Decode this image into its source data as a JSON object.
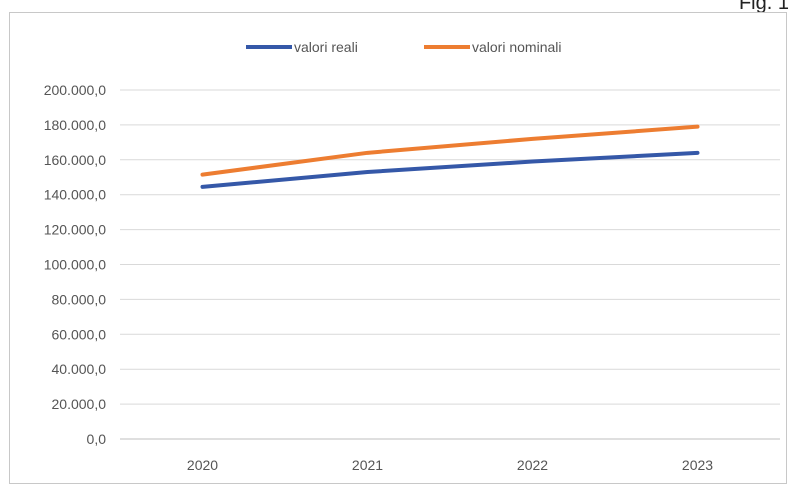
{
  "figure_label": "Fig. 1",
  "colors": {
    "valori_reali": "#3558a8",
    "valori_nominali": "#ed7d31",
    "grid": "#d9d9d9"
  },
  "chart_data": {
    "type": "line",
    "title": "",
    "xlabel": "",
    "ylabel": "",
    "categories": [
      "2020",
      "2021",
      "2022",
      "2023"
    ],
    "series": [
      {
        "name": "valori reali",
        "values": [
          144500,
          153000,
          159000,
          164000
        ]
      },
      {
        "name": "valori nominali",
        "values": [
          151500,
          164000,
          172000,
          179000
        ]
      }
    ],
    "ylim": [
      0,
      200000
    ],
    "yticks": [
      "0,0",
      "20.000,0",
      "40.000,0",
      "60.000,0",
      "80.000,0",
      "100.000,0",
      "120.000,0",
      "140.000,0",
      "160.000,0",
      "180.000,0",
      "200.000,0"
    ],
    "grid": true,
    "legend_position": "top-center"
  }
}
